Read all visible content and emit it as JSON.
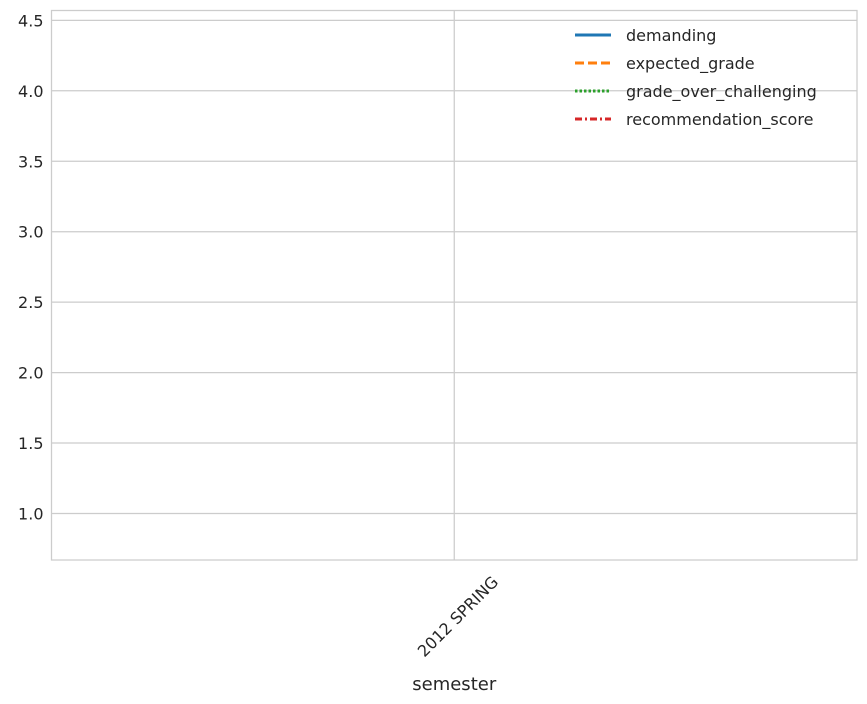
{
  "chart_data": {
    "type": "line",
    "title": "",
    "xlabel": "semester",
    "ylabel": "",
    "categories": [
      "2012 SPRING"
    ],
    "ylim": [
      0.67,
      4.57
    ],
    "yticks": [
      1.0,
      1.5,
      2.0,
      2.5,
      3.0,
      3.5,
      4.0,
      4.5
    ],
    "ytick_labels": [
      "1.0",
      "1.5",
      "2.0",
      "2.5",
      "3.0",
      "3.5",
      "4.0",
      "4.5"
    ],
    "grid": true,
    "legend_position": "top-right",
    "series": [
      {
        "name": "demanding",
        "values": [
          null
        ],
        "color": "#1f77b4",
        "line_style": "solid"
      },
      {
        "name": "expected_grade",
        "values": [
          null
        ],
        "color": "#ff7f0e",
        "line_style": "dashed"
      },
      {
        "name": "grade_over_challenging",
        "values": [
          null
        ],
        "color": "#2ca02c",
        "line_style": "dotted"
      },
      {
        "name": "recommendation_score",
        "values": [
          null
        ],
        "color": "#d62728",
        "line_style": "dashdot"
      }
    ]
  }
}
